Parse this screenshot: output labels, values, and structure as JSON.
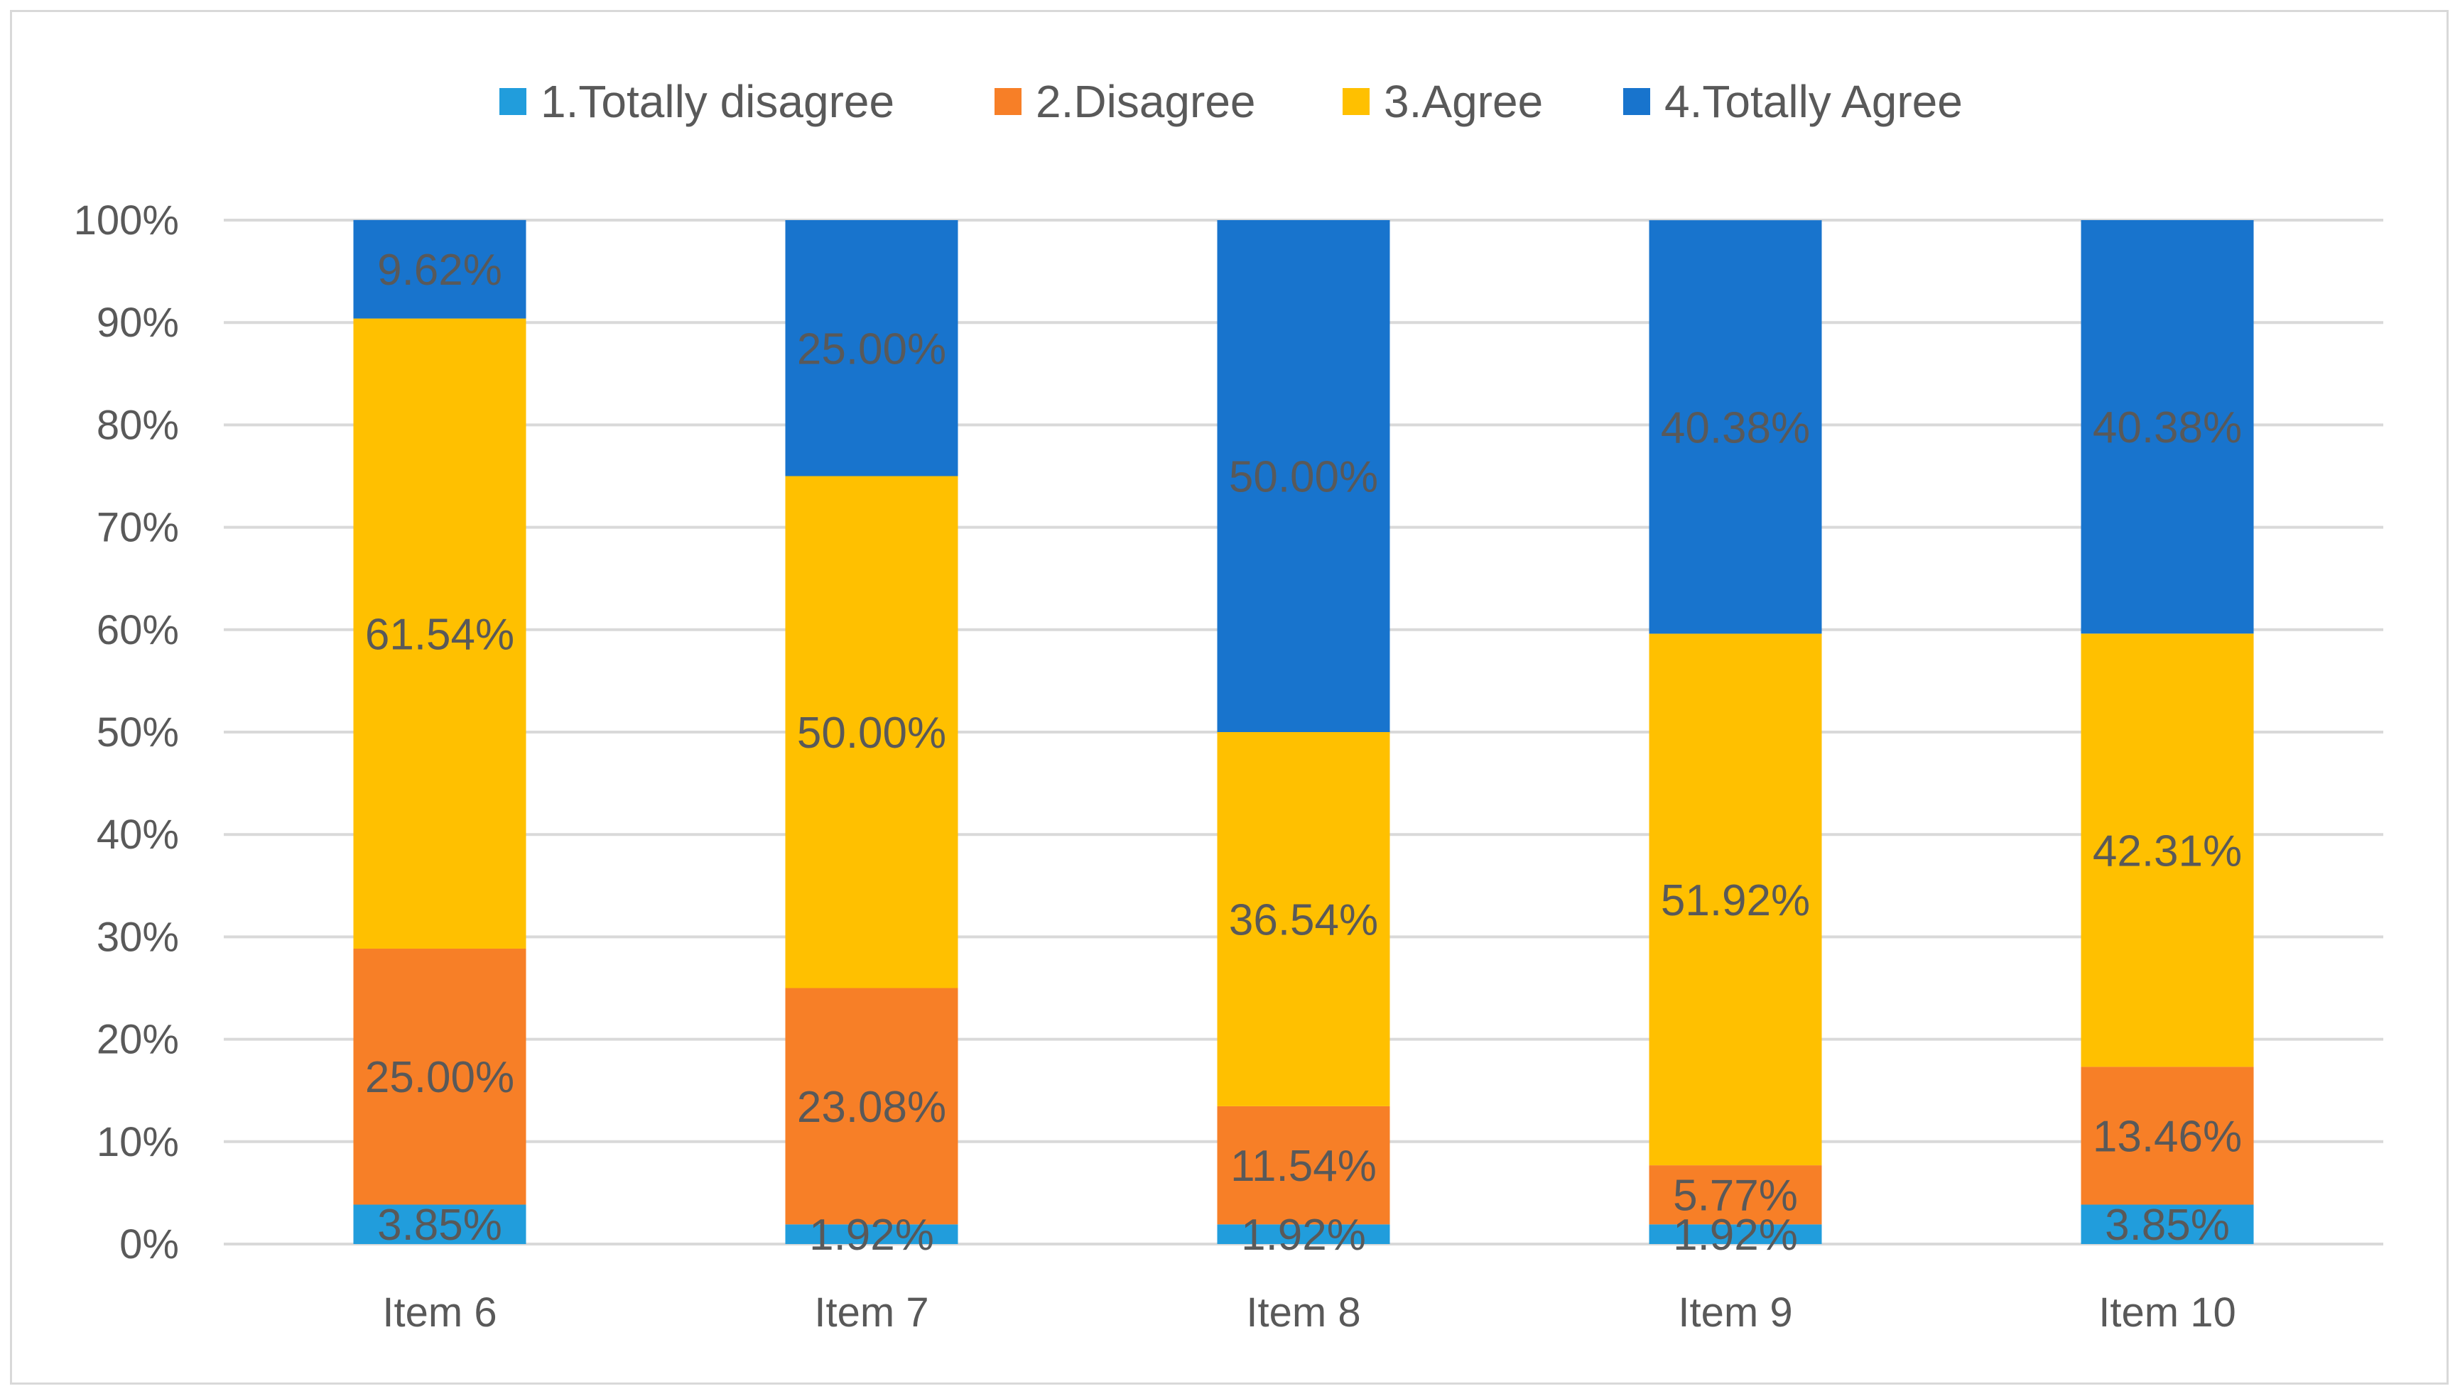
{
  "chart_data": {
    "type": "bar",
    "stacked": true,
    "percent_stacked": true,
    "title": "",
    "xlabel": "",
    "ylabel": "",
    "ylim": [
      0,
      100
    ],
    "yticks": [
      "0%",
      "10%",
      "20%",
      "30%",
      "40%",
      "50%",
      "60%",
      "70%",
      "80%",
      "90%",
      "100%"
    ],
    "grid": true,
    "legend_position": "top",
    "categories": [
      "Item 6",
      "Item 7",
      "Item 8",
      "Item 9",
      "Item 10"
    ],
    "series": [
      {
        "name": "1.Totally disagree",
        "color": "#219DDC",
        "values": [
          3.85,
          1.92,
          1.92,
          1.92,
          3.85
        ],
        "labels": [
          "3.85%",
          "1.92%",
          "1.92%",
          "1.92%",
          "3.85%"
        ]
      },
      {
        "name": "2.Disagree",
        "color": "#F77F27",
        "values": [
          25.0,
          23.08,
          11.54,
          5.77,
          13.46
        ],
        "labels": [
          "25.00%",
          "23.08%",
          "11.54%",
          "5.77%",
          "13.46%"
        ]
      },
      {
        "name": "3.Agree",
        "color": "#FFC000",
        "values": [
          61.54,
          50.0,
          36.54,
          51.92,
          42.31
        ],
        "labels": [
          "61.54%",
          "50.00%",
          "36.54%",
          "51.92%",
          "42.31%"
        ]
      },
      {
        "name": "4.Totally Agree",
        "color": "#1874CD",
        "values": [
          9.62,
          25.0,
          50.0,
          40.38,
          40.38
        ],
        "labels": [
          "9.62%",
          "25.00%",
          "50.00%",
          "40.38%",
          "40.38%"
        ]
      }
    ]
  }
}
